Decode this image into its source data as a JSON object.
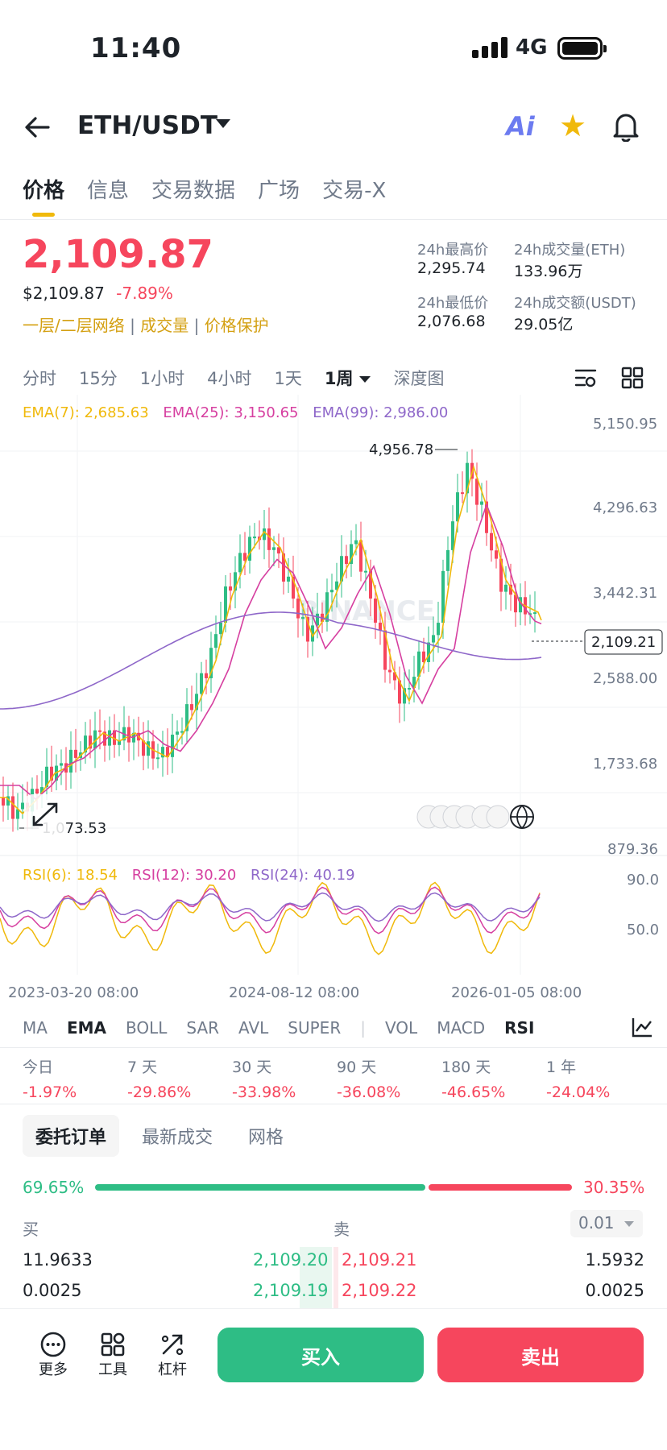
{
  "status": {
    "time": "11:40",
    "network": "4G"
  },
  "header": {
    "pair": "ETH/USDT",
    "ai_label": "Ai"
  },
  "tabs": [
    "价格",
    "信息",
    "交易数据",
    "广场",
    "交易-X"
  ],
  "price": {
    "last": "2,109.87",
    "usd": "$2,109.87",
    "change": "-7.89%",
    "tags": [
      "一层/二层网络",
      "成交量",
      "价格保护"
    ]
  },
  "stats": {
    "high_label": "24h最高价",
    "high": "2,295.74",
    "vol_eth_label": "24h成交量(ETH)",
    "vol_eth": "133.96万",
    "low_label": "24h最低价",
    "low": "2,076.68",
    "vol_usdt_label": "24h成交额(USDT)",
    "vol_usdt": "29.05亿"
  },
  "intervals": [
    "分时",
    "15分",
    "1小时",
    "4小时",
    "1天",
    "1周",
    "深度图"
  ],
  "chart": {
    "ema_legend": {
      "ema7": "EMA(7): 2,685.63",
      "ema25": "EMA(25): 3,150.65",
      "ema99": "EMA(99): 2,986.00"
    },
    "price_axis": [
      "5,150.95",
      "4,296.63",
      "3,442.31",
      "2,588.00",
      "1,733.68",
      "879.36"
    ],
    "current_price_label": "2,109.21",
    "high_annotation": "4,956.78",
    "low_annotation": "1,073.53",
    "watermark": "BINANCE",
    "rsi_legend": {
      "rsi6": "RSI(6): 18.54",
      "rsi12": "RSI(12): 30.20",
      "rsi24": "RSI(24): 40.19"
    },
    "rsi_axis": [
      "90.0",
      "50.0"
    ],
    "time_axis": [
      "2023-03-20 08:00",
      "2024-08-12 08:00",
      "2026-01-05 08:00"
    ],
    "colors": {
      "up": "#2ebd85",
      "down": "#f6465d",
      "ema7": "#f0b90b",
      "ema25": "#d63fa0",
      "ema99": "#8e67c9"
    }
  },
  "indicators": [
    "MA",
    "EMA",
    "BOLL",
    "SAR",
    "AVL",
    "SUPER",
    "VOL",
    "MACD",
    "RSI"
  ],
  "performance": [
    {
      "label": "今日",
      "value": "-1.97%"
    },
    {
      "label": "7 天",
      "value": "-29.86%"
    },
    {
      "label": "30 天",
      "value": "-33.98%"
    },
    {
      "label": "90 天",
      "value": "-36.08%"
    },
    {
      "label": "180 天",
      "value": "-46.65%"
    },
    {
      "label": "1 年",
      "value": "-24.04%"
    }
  ],
  "orderbook": {
    "tabs": [
      "委托订单",
      "最新成交",
      "网格"
    ],
    "buy_ratio": "69.65%",
    "sell_ratio": "30.35%",
    "buy_label": "买",
    "sell_label": "卖",
    "precision": "0.01",
    "rows": [
      {
        "bid_qty": "11.9633",
        "bid": "2,109.20",
        "ask": "2,109.21",
        "ask_qty": "1.5932"
      },
      {
        "bid_qty": "0.0025",
        "bid": "2,109.19",
        "ask": "2,109.22",
        "ask_qty": "0.0025"
      }
    ]
  },
  "bottom": {
    "more": "更多",
    "tools": "工具",
    "leverage": "杠杆",
    "buy": "买入",
    "sell": "卖出"
  }
}
